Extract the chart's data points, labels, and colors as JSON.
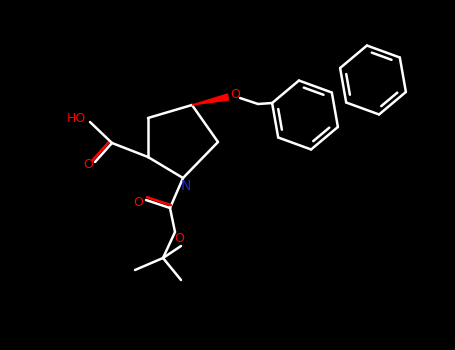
{
  "bg_color": "#000000",
  "bond_color": "#ffffff",
  "N_color": "#2222cc",
  "O_color": "#ff0000",
  "lw": 1.8,
  "figsize": [
    4.55,
    3.5
  ],
  "dpi": 100,
  "xlim": [
    0,
    455
  ],
  "ylim": [
    0,
    350
  ]
}
